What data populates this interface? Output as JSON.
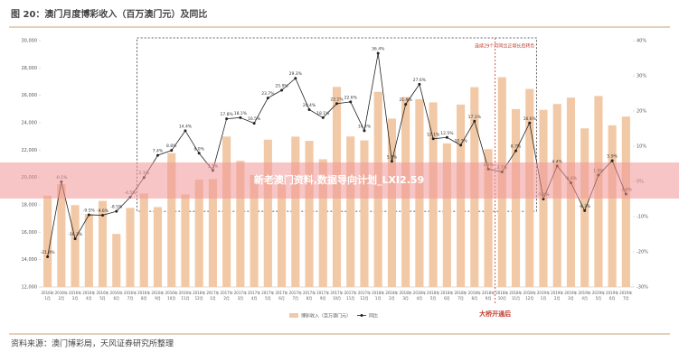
{
  "chart_data": {
    "type": "bar",
    "title": "图 20：澳门月度博彩收入（百万澳门元）及同比",
    "source": "资料来源：澳门博彩局，天风证券研究所整理",
    "annotations": [
      "连续29个月同比正增长后转负",
      "大桥开通后"
    ],
    "overlay": "新老澳门资料,数据导向计划_LXI2.59",
    "categories": [
      "2016年1月",
      "2016年2月",
      "2016年3月",
      "2016年4月",
      "2016年5月",
      "2016年6月",
      "2016年7月",
      "2016年8月",
      "2016年9月",
      "2016年10月",
      "2016年11月",
      "2016年12月",
      "2017年1月",
      "2017年2月",
      "2017年3月",
      "2017年4月",
      "2017年5月",
      "2017年6月",
      "2017年7月",
      "2017年8月",
      "2017年9月",
      "2017年10月",
      "2017年11月",
      "2017年12月",
      "2018年1月",
      "2018年2月",
      "2018年3月",
      "2018年4月",
      "2018年5月",
      "2018年6月",
      "2018年7月",
      "2018年8月",
      "2018年9月",
      "2018年10月",
      "2018年11月",
      "2018年12月",
      "2019年1月",
      "2019年2月",
      "2019年3月",
      "2019年4月",
      "2019年5月",
      "2019年6月",
      "2019年7月"
    ],
    "series": [
      {
        "name": "博彩收入（百万澳门元）",
        "type": "bar",
        "color": "#f2c9a6",
        "values": [
          18672,
          19521,
          17981,
          17327,
          18290,
          15878,
          17778,
          18835,
          17838,
          21781,
          18763,
          19844,
          19880,
          22994,
          21222,
          20180,
          22764,
          19990,
          22985,
          22674,
          21335,
          26620,
          22998,
          22709,
          26260,
          24300,
          25877,
          25728,
          25490,
          22490,
          25327,
          26600,
          22070,
          27330,
          24996,
          26469,
          24942,
          25370,
          25840,
          23588,
          25952,
          23812,
          24453
        ]
      },
      {
        "name": "同比",
        "type": "line",
        "axis": "y2",
        "color": "#222222",
        "values": [
          -21.4,
          -0.1,
          -16.3,
          -9.5,
          -9.6,
          -8.5,
          -4.5,
          1.1,
          7.4,
          8.8,
          14.4,
          8.0,
          3.1,
          17.8,
          18.1,
          16.5,
          23.7,
          25.9,
          29.3,
          20.4,
          18.1,
          22.1,
          22.6,
          14.4,
          36.4,
          5.7,
          21.9,
          27.6,
          12.1,
          12.5,
          10.3,
          17.1,
          3.5,
          2.7,
          8.7,
          16.6,
          -5.0,
          4.4,
          -0.4,
          -8.3,
          1.8,
          5.9,
          -3.6
        ],
        "value_labels": [
          "-21.4%",
          "-0.1%",
          "-16.3%",
          "-9.5%",
          "-9.6%",
          "-8.5%",
          "-4.5%",
          "1.1%",
          "7.4%",
          "8.8%",
          "14.4%",
          "8.0%",
          "3.1%",
          "17.8%",
          "18.1%",
          "16.5%",
          "23.7%",
          "25.9%",
          "29.3%",
          "20.4%",
          "18.1%",
          "22.1%",
          "22.6%",
          "14.4%",
          "36.4%",
          "5.7%",
          "21.9%",
          "27.6%",
          "12.1%",
          "12.5%",
          "10.3%",
          "17.1%",
          "3.5%",
          "2.7%",
          "8.7%",
          "16.6%",
          "-5.0%",
          "4.4%",
          "-0.4%",
          "-8.3%",
          "1.8%",
          "5.9%",
          "-3.6%"
        ]
      }
    ],
    "ylim": [
      12000,
      30000
    ],
    "yticks": [
      {
        "value": 12000,
        "label": "12,000"
      },
      {
        "value": 14000,
        "label": "14,000"
      },
      {
        "value": 16000,
        "label": "16,000"
      },
      {
        "value": 18000,
        "label": "18,000"
      },
      {
        "value": 20000,
        "label": "20,000"
      },
      {
        "value": 22000,
        "label": "22,000"
      },
      {
        "value": 24000,
        "label": "24,000"
      },
      {
        "value": 26000,
        "label": "26,000"
      },
      {
        "value": 28000,
        "label": "28,000"
      },
      {
        "value": 30000,
        "label": "30,000"
      }
    ],
    "y2lim": [
      -30,
      40
    ],
    "y2ticks": [
      {
        "value": -30,
        "label": "-30%"
      },
      {
        "value": -20,
        "label": "-20%"
      },
      {
        "value": -10,
        "label": "-10%"
      },
      {
        "value": 0,
        "label": "0%"
      },
      {
        "value": 10,
        "label": "10%"
      },
      {
        "value": 20,
        "label": "20%"
      },
      {
        "value": 30,
        "label": "30%"
      },
      {
        "value": 40,
        "label": "40%"
      }
    ]
  }
}
